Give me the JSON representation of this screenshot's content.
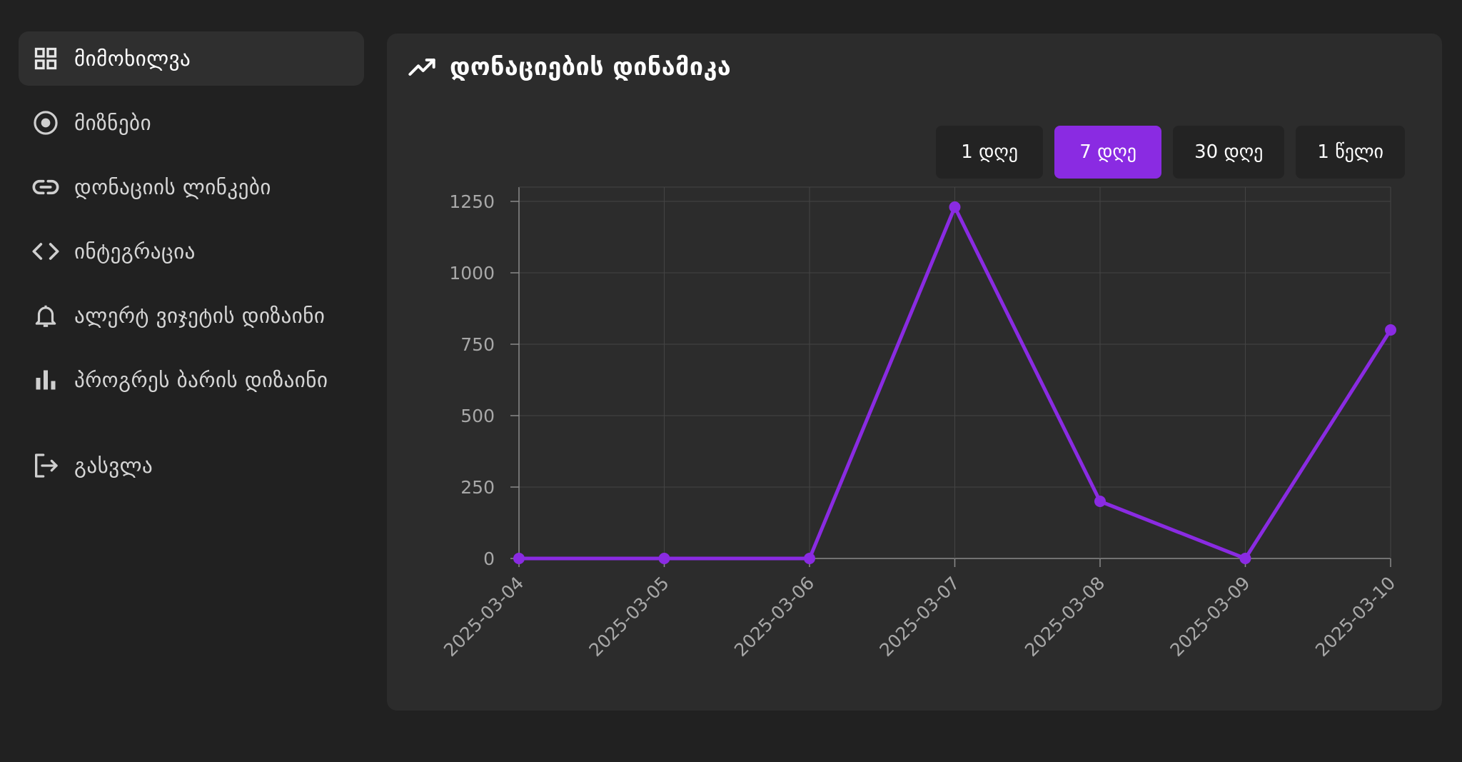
{
  "sidebar": {
    "items": [
      {
        "label": "მიმოხილვა",
        "icon": "grid-icon",
        "active": true
      },
      {
        "label": "მიზნები",
        "icon": "target-icon",
        "active": false
      },
      {
        "label": "დონაციის ლინკები",
        "icon": "link-icon",
        "active": false
      },
      {
        "label": "ინტეგრაცია",
        "icon": "code-icon",
        "active": false
      },
      {
        "label": "ალერტ ვიჯეტის დიზაინი",
        "icon": "bell-icon",
        "active": false
      },
      {
        "label": "პროგრეს ბარის დიზაინი",
        "icon": "bar-chart-icon",
        "active": false
      }
    ],
    "logout": {
      "label": "გასვლა",
      "icon": "logout-icon"
    }
  },
  "panel": {
    "title": "დონაციების დინამიკა",
    "title_icon": "trending-up-icon",
    "ranges": [
      {
        "label": "1 დღე",
        "active": false
      },
      {
        "label": "7 დღე",
        "active": true
      },
      {
        "label": "30 დღე",
        "active": false
      },
      {
        "label": "1 წელი",
        "active": false
      }
    ]
  },
  "colors": {
    "accent": "#8a2be2",
    "background": "#212121",
    "panel": "#2c2c2c"
  },
  "chart_data": {
    "type": "line",
    "categories": [
      "2025-03-04",
      "2025-03-05",
      "2025-03-06",
      "2025-03-07",
      "2025-03-08",
      "2025-03-09",
      "2025-03-10"
    ],
    "values": [
      0,
      0,
      0,
      1230,
      200,
      0,
      800
    ],
    "yticks": [
      0,
      250,
      500,
      750,
      1000,
      1250
    ],
    "ylim": [
      0,
      1300
    ],
    "grid": true,
    "legend": "none",
    "color": "#8a2be2"
  }
}
